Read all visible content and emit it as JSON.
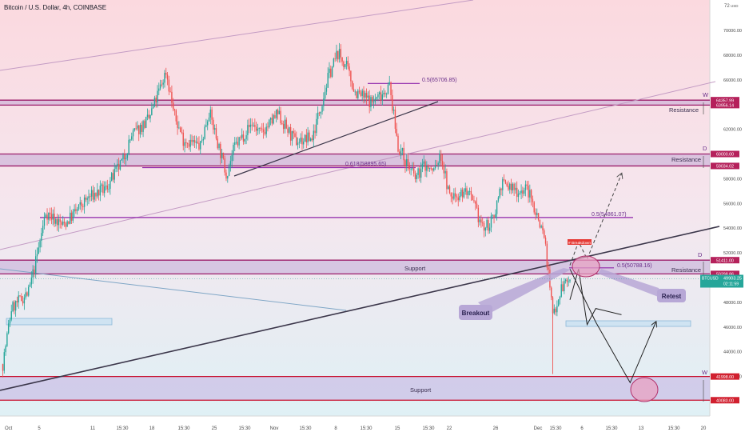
{
  "header": {
    "title": "Bitcoin / U.S. Dollar, 4h, COINBASE"
  },
  "price_axis": {
    "unit_label": "USD",
    "top_label": "72",
    "ticks": [
      "70000.00",
      "68000.00",
      "66000.00",
      "62000.00",
      "58000.00",
      "56000.00",
      "54000.00",
      "52000.00",
      "48000.00",
      "46000.00",
      "44000.00",
      "42000.00"
    ],
    "badges": [
      {
        "text": "64357.99",
        "color": "#b5215b"
      },
      {
        "text": "63956.14",
        "color": "#b5215b"
      },
      {
        "text": "60000.00",
        "color": "#b5215b"
      },
      {
        "text": "59034.02",
        "color": "#b5215b"
      },
      {
        "text": "51411.00",
        "color": "#b5215b"
      },
      {
        "text": "50298.86",
        "color": "#b5215b"
      },
      {
        "text": "41998.00",
        "color": "#d1202f"
      },
      {
        "text": "40080.00",
        "color": "#d1202f"
      }
    ],
    "current": {
      "symbol": "BTCUSD",
      "price": "49903.25",
      "countdown": "02:11:59",
      "color": "#26a69a"
    }
  },
  "time_axis": {
    "labels": [
      "Oct",
      "5",
      "11",
      "15:30",
      "18",
      "15:30",
      "25",
      "15:30",
      "Nov",
      "15:30",
      "8",
      "15:30",
      "15",
      "15:30",
      "22",
      "26",
      "Dec",
      "15:30",
      "6",
      "15:30",
      "13",
      "15:30",
      "20"
    ]
  },
  "annotations": {
    "resistance_labels": [
      "Resistance",
      "Resistance",
      "Resistance"
    ],
    "support_labels": [
      "Support",
      "Support"
    ],
    "timeframe_markers": [
      "W",
      "D",
      "D",
      "W"
    ],
    "fib_labels": [
      "0.5(65706.85)",
      "0.618(58895.65)",
      "0.5(54861.07)",
      "0.5(50788.16)"
    ],
    "breakout_label": "Breakout",
    "retest_label": "Retest",
    "red_tag": "# Breakdown"
  },
  "chart_data": {
    "type": "candlestick",
    "title": "Bitcoin / U.S. Dollar, 4h, COINBASE",
    "series": [
      {
        "name": "BTCUSD",
        "path": [
          [
            "Oct 1",
            43000
          ],
          [
            "Oct 2",
            47500
          ],
          [
            "Oct 4",
            48800
          ],
          [
            "Oct 5",
            51800
          ],
          [
            "Oct 6",
            55300
          ],
          [
            "Oct 8",
            54200
          ],
          [
            "Oct 11",
            56500
          ],
          [
            "Oct 13",
            57200
          ],
          [
            "Oct 15",
            59500
          ],
          [
            "Oct 16",
            61500
          ],
          [
            "Oct 18",
            62800
          ],
          [
            "Oct 20",
            66700
          ],
          [
            "Oct 21",
            63000
          ],
          [
            "Oct 22",
            61200
          ],
          [
            "Oct 24",
            60600
          ],
          [
            "Oct 25",
            63500
          ],
          [
            "Oct 27",
            58400
          ],
          [
            "Oct 28",
            60600
          ],
          [
            "Oct 30",
            62500
          ],
          [
            "Oct 31",
            61600
          ],
          [
            "Nov 2",
            63200
          ],
          [
            "Nov 4",
            61000
          ],
          [
            "Nov 6",
            61300
          ],
          [
            "Nov 8",
            66500
          ],
          [
            "Nov 9",
            68200
          ],
          [
            "Nov 10",
            67000
          ],
          [
            "Nov 11",
            65000
          ],
          [
            "Nov 13",
            64200
          ],
          [
            "Nov 15",
            65500
          ],
          [
            "Nov 16",
            60600
          ],
          [
            "Nov 18",
            58000
          ],
          [
            "Nov 19",
            59100
          ],
          [
            "Nov 20",
            58600
          ],
          [
            "Nov 21",
            59800
          ],
          [
            "Nov 22",
            56500
          ],
          [
            "Nov 24",
            57000
          ],
          [
            "Nov 26",
            53900
          ],
          [
            "Nov 27",
            54600
          ],
          [
            "Nov 28",
            57600
          ],
          [
            "Nov 30",
            57000
          ],
          [
            "Dec 1",
            57200
          ],
          [
            "Dec 3",
            53500
          ],
          [
            "Dec 4",
            47000
          ],
          [
            "Dec 5",
            49200
          ],
          [
            "Dec 6",
            49903
          ]
        ]
      }
    ],
    "current_price": 49903.25,
    "levels": {
      "resistance_zones": [
        [
          63956.14,
          64357.99
        ],
        [
          59034.02,
          60000.0
        ],
        [
          50298.86,
          51411.0
        ]
      ],
      "support_zones": [
        [
          50298.86,
          51411.0
        ],
        [
          40080.0,
          41998.0
        ]
      ],
      "fib_levels": [
        65706.85,
        58895.65,
        54861.07,
        50788.16
      ]
    },
    "projection": {
      "path_a": [
        [
          "Dec 6",
          48200
        ],
        [
          "Dec 7",
          50700
        ],
        [
          "Dec 8",
          46200
        ],
        [
          "Dec 9",
          47500
        ],
        [
          "Dec 12",
          47000
        ]
      ],
      "path_b": [
        [
          "Dec 6",
          50700
        ],
        [
          "Dec 9",
          46400
        ],
        [
          "Dec 13",
          41500
        ],
        [
          "Dec 16",
          46400
        ]
      ],
      "dashed": [
        [
          "Dec 6",
          51000
        ],
        [
          "Dec 7",
          52900
        ],
        [
          "Dec 8",
          51500
        ],
        [
          "Dec 12",
          58400
        ]
      ]
    },
    "ylim": [
      38500,
      72500
    ],
    "xlim": [
      "Oct 1",
      "Dec 21"
    ],
    "grid": false
  }
}
